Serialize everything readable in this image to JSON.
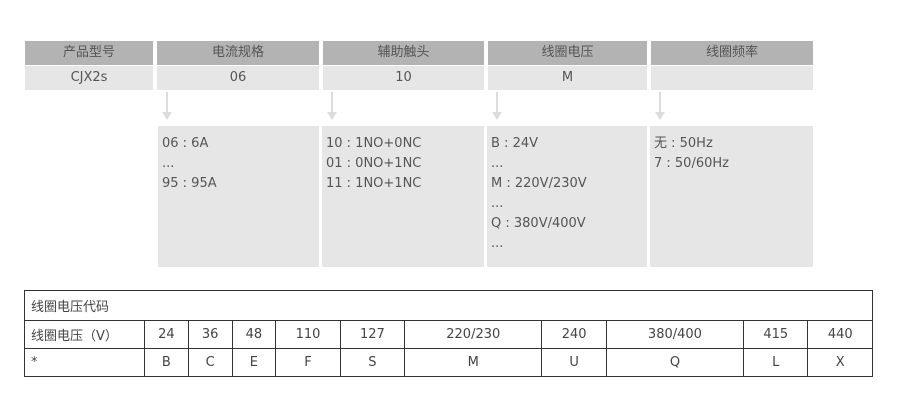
{
  "columns": [
    {
      "header": "产品型号",
      "value": "CJX2s",
      "details": []
    },
    {
      "header": "电流规格",
      "value": "06",
      "details": [
        "06 : 6A",
        "...",
        "95 : 95A"
      ]
    },
    {
      "header": "辅助触头",
      "value": "10",
      "details": [
        "10 : 1NO+0NC",
        "01 : 0NO+1NC",
        "11 : 1NO+1NC"
      ]
    },
    {
      "header": "线圈电压",
      "value": "M",
      "details": [
        "B : 24V",
        "...",
        "M : 220V/230V",
        "...",
        "Q : 380V/400V",
        "..."
      ]
    },
    {
      "header": "线圈频率",
      "value": "",
      "details": [
        "无 : 50Hz",
        "7 : 50/60Hz"
      ]
    }
  ],
  "voltage_table": {
    "title": "线圈电压代码",
    "row_voltage_label": "线圈电压（V）",
    "voltages": [
      "24",
      "36",
      "48",
      "110",
      "127",
      "220/230",
      "240",
      "380/400",
      "415",
      "440"
    ],
    "row_code_label": "*",
    "codes": [
      "B",
      "C",
      "E",
      "F",
      "S",
      "M",
      "U",
      "Q",
      "L",
      "X"
    ]
  }
}
